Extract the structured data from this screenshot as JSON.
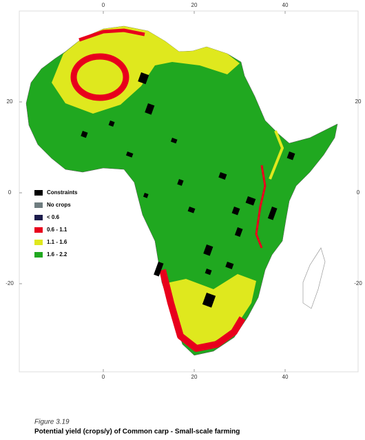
{
  "map": {
    "lon_ticks": [
      0,
      20,
      40
    ],
    "lat_ticks": [
      20,
      0,
      -20
    ],
    "legend": [
      {
        "label": "Constraints",
        "color": "#000000"
      },
      {
        "label": "No crops",
        "color": "#6f7d80"
      },
      {
        "label": "< 0.6",
        "color": "#1c1c4c"
      },
      {
        "label": "0.6 - 1.1",
        "color": "#e8001c"
      },
      {
        "label": "1.1 - 1.6",
        "color": "#dfe81e"
      },
      {
        "label": "1.6 - 2.2",
        "color": "#20a820"
      }
    ],
    "caption": {
      "figure": "Figure 3.19",
      "title": "Potential yield (crops/y) of Common carp - Small-scale farming"
    }
  }
}
